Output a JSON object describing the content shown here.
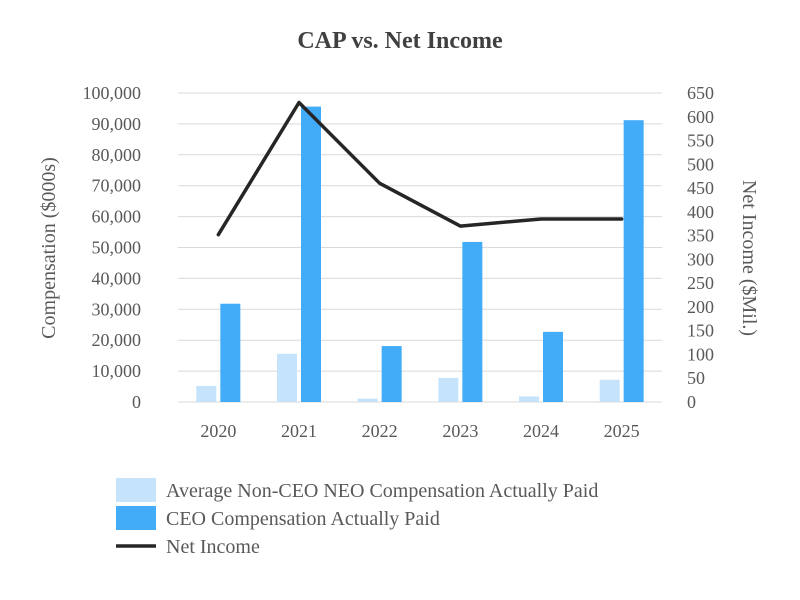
{
  "chart_data": {
    "type": "bar",
    "title": "CAP vs. Net Income",
    "categories": [
      "2020",
      "2021",
      "2022",
      "2023",
      "2024",
      "2025"
    ],
    "ylabel": "Compensation ($000s)",
    "y2label": "Net Income ($Mil.)",
    "ylim": [
      0,
      100000
    ],
    "y2lim": [
      0,
      650
    ],
    "yticks": [
      0,
      10000,
      20000,
      30000,
      40000,
      50000,
      60000,
      70000,
      80000,
      90000,
      100000
    ],
    "ytick_labels": [
      "0",
      "10,000",
      "20,000",
      "30,000",
      "40,000",
      "50,000",
      "60,000",
      "70,000",
      "80,000",
      "90,000",
      "100,000"
    ],
    "y2ticks": [
      0,
      50,
      100,
      150,
      200,
      250,
      300,
      350,
      400,
      450,
      500,
      550,
      600,
      650
    ],
    "y2tick_labels": [
      "0",
      "50",
      "100",
      "150",
      "200",
      "250",
      "300",
      "350",
      "400",
      "450",
      "500",
      "550",
      "600",
      "650"
    ],
    "grid": true,
    "legend_position": "bottom",
    "series": [
      {
        "name": "Average Non-CEO NEO Compensation Actually Paid",
        "type": "bar",
        "axis": "left",
        "color": "#c5e3fb",
        "values": [
          5200,
          15600,
          1100,
          7800,
          1800,
          7200
        ]
      },
      {
        "name": "CEO Compensation Actually Paid",
        "type": "bar",
        "axis": "left",
        "color": "#42acf9",
        "values": [
          31800,
          95600,
          18100,
          51800,
          22700,
          91200
        ]
      },
      {
        "name": "Net Income",
        "type": "line",
        "axis": "right",
        "color": "#262626",
        "values": [
          352,
          630,
          460,
          370,
          385,
          385
        ]
      }
    ]
  }
}
